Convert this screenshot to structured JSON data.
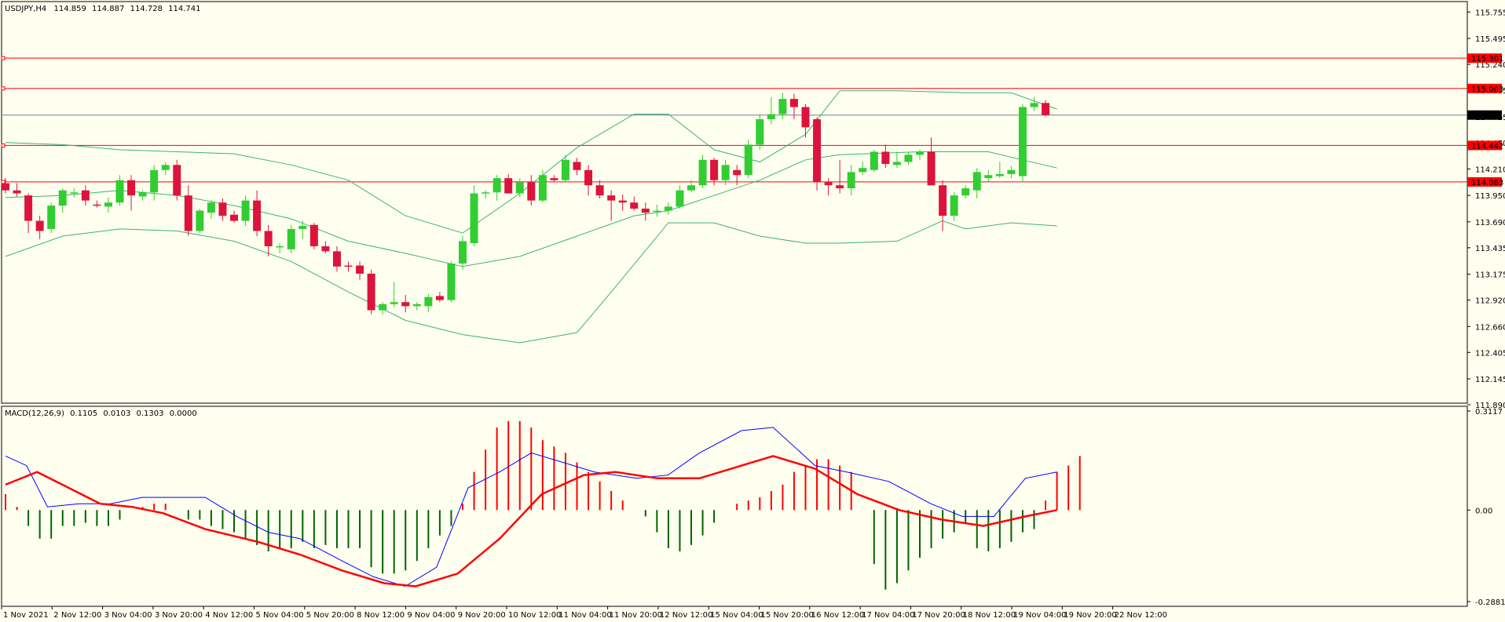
{
  "window": {
    "symbol": "USDJPY,H4",
    "ohlc": [
      "114.859",
      "114.887",
      "114.728",
      "114.741"
    ]
  },
  "colors": {
    "background": "#fffff0",
    "bull_candle": "#32cd32",
    "bear_candle": "#dc143c",
    "bands": "#3cb371",
    "level_line": "#ff0000",
    "price_line": "#708090",
    "macd_main": "#0000ff",
    "macd_signal": "#ff0000",
    "hist_up": "#ff0000",
    "hist_down": "#006400"
  },
  "chart_data": [
    {
      "type": "candlestick",
      "title": "USDJPY,H4",
      "ylim": [
        111.89,
        115.75
      ],
      "price_ticks": [
        "115.755",
        "115.495",
        "115.240",
        "114.985",
        "114.725",
        "114.470",
        "114.210",
        "113.950",
        "113.690",
        "113.435",
        "113.175",
        "112.920",
        "112.660",
        "112.405",
        "112.145",
        "111.890"
      ],
      "x_ticks": [
        "1 Nov 2021",
        "2 Nov 12:00",
        "3 Nov 04:00",
        "3 Nov 20:00",
        "4 Nov 12:00",
        "5 Nov 04:00",
        "5 Nov 20:00",
        "8 Nov 12:00",
        "9 Nov 04:00",
        "9 Nov 20:00",
        "10 Nov 12:00",
        "11 Nov 04:00",
        "11 Nov 20:00",
        "12 Nov 12:00",
        "15 Nov 04:00",
        "15 Nov 20:00",
        "16 Nov 12:00",
        "17 Nov 04:00",
        "17 Nov 20:00",
        "18 Nov 12:00",
        "19 Nov 04:00",
        "19 Nov 20:00",
        "22 Nov 12:00"
      ],
      "horizontal_levels": [
        {
          "label": "115.301",
          "value": 115.301
        },
        {
          "label": "115.003",
          "value": 115.003
        },
        {
          "label": "114.442",
          "value": 114.442
        },
        {
          "label": "114.083",
          "value": 114.083
        }
      ],
      "current_price": {
        "label": "114.741",
        "value": 114.741
      },
      "ohlc": [
        [
          114.07,
          114.12,
          113.97,
          114.0
        ],
        [
          114.0,
          114.07,
          113.94,
          113.97
        ],
        [
          113.95,
          113.97,
          113.58,
          113.7
        ],
        [
          113.7,
          113.75,
          113.52,
          113.6
        ],
        [
          113.62,
          113.88,
          113.58,
          113.85
        ],
        [
          113.85,
          114.02,
          113.78,
          114.0
        ],
        [
          113.97,
          114.02,
          113.93,
          113.98
        ],
        [
          114.0,
          114.05,
          113.85,
          113.9
        ],
        [
          113.86,
          113.9,
          113.83,
          113.85
        ],
        [
          113.84,
          113.93,
          113.78,
          113.88
        ],
        [
          113.88,
          114.15,
          113.85,
          114.1
        ],
        [
          114.1,
          114.15,
          113.8,
          113.95
        ],
        [
          113.94,
          114.0,
          113.9,
          113.98
        ],
        [
          113.98,
          114.25,
          113.9,
          114.2
        ],
        [
          114.2,
          114.28,
          114.15,
          114.25
        ],
        [
          114.25,
          114.3,
          113.9,
          113.95
        ],
        [
          113.95,
          114.05,
          113.55,
          113.6
        ],
        [
          113.6,
          113.82,
          113.58,
          113.8
        ],
        [
          113.78,
          113.9,
          113.72,
          113.88
        ],
        [
          113.88,
          113.92,
          113.7,
          113.75
        ],
        [
          113.76,
          113.8,
          113.68,
          113.7
        ],
        [
          113.7,
          113.95,
          113.65,
          113.9
        ],
        [
          113.9,
          114.0,
          113.55,
          113.6
        ],
        [
          113.6,
          113.66,
          113.35,
          113.45
        ],
        [
          113.44,
          113.48,
          113.38,
          113.45
        ],
        [
          113.42,
          113.66,
          113.38,
          113.62
        ],
        [
          113.62,
          113.7,
          113.52,
          113.65
        ],
        [
          113.66,
          113.68,
          113.42,
          113.45
        ],
        [
          113.45,
          113.5,
          113.38,
          113.4
        ],
        [
          113.4,
          113.45,
          113.2,
          113.25
        ],
        [
          113.26,
          113.3,
          113.2,
          113.25
        ],
        [
          113.26,
          113.3,
          113.12,
          113.18
        ],
        [
          113.18,
          113.22,
          112.78,
          112.82
        ],
        [
          112.82,
          112.9,
          112.78,
          112.88
        ],
        [
          112.88,
          113.1,
          112.85,
          112.9
        ],
        [
          112.9,
          112.97,
          112.8,
          112.86
        ],
        [
          112.86,
          112.9,
          112.82,
          112.88
        ],
        [
          112.86,
          112.98,
          112.8,
          112.95
        ],
        [
          112.96,
          113.0,
          112.9,
          112.92
        ],
        [
          112.92,
          113.3,
          112.9,
          113.28
        ],
        [
          113.28,
          113.55,
          113.22,
          113.5
        ],
        [
          113.48,
          114.05,
          113.45,
          113.97
        ],
        [
          113.97,
          114.0,
          113.92,
          113.98
        ],
        [
          113.98,
          114.15,
          113.9,
          114.12
        ],
        [
          114.12,
          114.16,
          113.97,
          113.97
        ],
        [
          113.97,
          114.12,
          113.93,
          114.08
        ],
        [
          114.08,
          114.15,
          113.85,
          113.9
        ],
        [
          113.9,
          114.2,
          113.88,
          114.15
        ],
        [
          114.12,
          114.15,
          114.08,
          114.1
        ],
        [
          114.1,
          114.35,
          114.08,
          114.3
        ],
        [
          114.28,
          114.32,
          114.15,
          114.2
        ],
        [
          114.2,
          114.25,
          113.95,
          114.05
        ],
        [
          114.05,
          114.1,
          113.92,
          113.95
        ],
        [
          113.95,
          114.0,
          113.7,
          113.9
        ],
        [
          113.9,
          113.96,
          113.8,
          113.88
        ],
        [
          113.88,
          113.94,
          113.8,
          113.82
        ],
        [
          113.82,
          113.88,
          113.7,
          113.78
        ],
        [
          113.8,
          113.86,
          113.74,
          113.8
        ],
        [
          113.8,
          113.88,
          113.76,
          113.84
        ],
        [
          113.84,
          114.05,
          113.82,
          114.0
        ],
        [
          114.0,
          114.1,
          113.98,
          114.05
        ],
        [
          114.05,
          114.35,
          114.02,
          114.3
        ],
        [
          114.3,
          114.32,
          114.05,
          114.1
        ],
        [
          114.1,
          114.3,
          114.05,
          114.25
        ],
        [
          114.2,
          114.25,
          114.05,
          114.15
        ],
        [
          114.15,
          114.5,
          114.12,
          114.45
        ],
        [
          114.45,
          114.75,
          114.4,
          114.7
        ],
        [
          114.7,
          114.92,
          114.65,
          114.75
        ],
        [
          114.75,
          114.96,
          114.7,
          114.9
        ],
        [
          114.9,
          114.95,
          114.7,
          114.82
        ],
        [
          114.82,
          114.85,
          114.52,
          114.62
        ],
        [
          114.7,
          114.72,
          114.0,
          114.08
        ],
        [
          114.08,
          114.12,
          113.95,
          114.05
        ],
        [
          114.05,
          114.3,
          113.97,
          114.02
        ],
        [
          114.02,
          114.25,
          113.95,
          114.18
        ],
        [
          114.18,
          114.28,
          114.15,
          114.22
        ],
        [
          114.2,
          114.4,
          114.18,
          114.38
        ],
        [
          114.38,
          114.45,
          114.22,
          114.26
        ],
        [
          114.25,
          114.38,
          114.22,
          114.28
        ],
        [
          114.28,
          114.38,
          114.25,
          114.35
        ],
        [
          114.35,
          114.4,
          114.3,
          114.38
        ],
        [
          114.38,
          114.52,
          114.05,
          114.05
        ],
        [
          114.05,
          114.1,
          113.6,
          113.75
        ],
        [
          113.75,
          113.98,
          113.7,
          113.95
        ],
        [
          113.95,
          114.05,
          113.92,
          114.02
        ],
        [
          114.0,
          114.22,
          113.92,
          114.18
        ],
        [
          114.12,
          114.2,
          114.08,
          114.15
        ],
        [
          114.14,
          114.28,
          114.12,
          114.16
        ],
        [
          114.16,
          114.24,
          114.12,
          114.2
        ],
        [
          114.14,
          114.85,
          114.08,
          114.82
        ],
        [
          114.82,
          114.92,
          114.78,
          114.86
        ],
        [
          114.86,
          114.89,
          114.73,
          114.74
        ]
      ],
      "bollinger": {
        "upper": [
          [
            0,
            114.47
          ],
          [
            5,
            114.45
          ],
          [
            10,
            114.4
          ],
          [
            15,
            114.38
          ],
          [
            20,
            114.36
          ],
          [
            25,
            114.25
          ],
          [
            30,
            114.1
          ],
          [
            35,
            113.75
          ],
          [
            40,
            113.58
          ],
          [
            45,
            113.97
          ],
          [
            50,
            114.42
          ],
          [
            55,
            114.75
          ],
          [
            58,
            114.75
          ],
          [
            62,
            114.4
          ],
          [
            66,
            114.28
          ],
          [
            70,
            114.55
          ],
          [
            73,
            114.98
          ],
          [
            78,
            114.98
          ],
          [
            84,
            114.96
          ],
          [
            88,
            114.96
          ],
          [
            92,
            114.8
          ]
        ],
        "middle": [
          [
            0,
            113.93
          ],
          [
            5,
            113.95
          ],
          [
            10,
            114.0
          ],
          [
            15,
            113.95
          ],
          [
            20,
            113.85
          ],
          [
            25,
            113.72
          ],
          [
            30,
            113.5
          ],
          [
            35,
            113.38
          ],
          [
            40,
            113.25
          ],
          [
            45,
            113.35
          ],
          [
            50,
            113.55
          ],
          [
            55,
            113.75
          ],
          [
            58,
            113.8
          ],
          [
            62,
            113.95
          ],
          [
            66,
            114.1
          ],
          [
            70,
            114.3
          ],
          [
            73,
            114.35
          ],
          [
            80,
            114.38
          ],
          [
            86,
            114.38
          ],
          [
            92,
            114.22
          ]
        ],
        "lower": [
          [
            0,
            113.35
          ],
          [
            5,
            113.55
          ],
          [
            10,
            113.62
          ],
          [
            15,
            113.6
          ],
          [
            20,
            113.5
          ],
          [
            25,
            113.3
          ],
          [
            30,
            113.0
          ],
          [
            35,
            112.72
          ],
          [
            40,
            112.58
          ],
          [
            45,
            112.5
          ],
          [
            50,
            112.6
          ],
          [
            53,
            113.0
          ],
          [
            58,
            113.68
          ],
          [
            62,
            113.68
          ],
          [
            66,
            113.55
          ],
          [
            70,
            113.48
          ],
          [
            73,
            113.48
          ],
          [
            78,
            113.5
          ],
          [
            82,
            113.7
          ],
          [
            84,
            113.62
          ],
          [
            88,
            113.68
          ],
          [
            92,
            113.65
          ]
        ]
      }
    },
    {
      "type": "macd",
      "title": "MACD(12,26,9)",
      "values": [
        "0.1105",
        "0.0103",
        "0.1303",
        "0.0000"
      ],
      "ylim": [
        -0.2881,
        0.3117
      ],
      "y_ticks": [
        "0.3117",
        "0.00",
        "-0.2881"
      ],
      "histogram": [
        0.05,
        0.01,
        -0.05,
        -0.09,
        -0.09,
        -0.05,
        -0.05,
        -0.04,
        -0.05,
        -0.05,
        -0.03,
        0.0,
        0.01,
        0.02,
        0.02,
        0.0,
        -0.03,
        -0.03,
        -0.05,
        -0.06,
        -0.07,
        -0.09,
        -0.11,
        -0.13,
        -0.12,
        -0.12,
        -0.1,
        -0.12,
        -0.11,
        -0.12,
        -0.12,
        -0.12,
        -0.18,
        -0.2,
        -0.2,
        -0.19,
        -0.16,
        -0.12,
        -0.08,
        -0.05,
        0.02,
        0.12,
        0.19,
        0.26,
        0.28,
        0.28,
        0.26,
        0.22,
        0.2,
        0.18,
        0.15,
        0.12,
        0.09,
        0.06,
        0.03,
        0.0,
        -0.02,
        -0.07,
        -0.12,
        -0.13,
        -0.11,
        -0.08,
        -0.04,
        0.0,
        0.02,
        0.03,
        0.04,
        0.06,
        0.08,
        0.12,
        0.14,
        0.16,
        0.16,
        0.14,
        0.12,
        0.0,
        -0.17,
        -0.25,
        -0.23,
        -0.19,
        -0.15,
        -0.12,
        -0.09,
        -0.07,
        -0.04,
        -0.12,
        -0.13,
        -0.12,
        -0.1,
        -0.07,
        -0.06,
        0.03,
        0.12,
        0.14,
        0.17
      ],
      "main": [
        [
          0,
          0.17
        ],
        [
          2,
          0.14
        ],
        [
          4,
          0.01
        ],
        [
          7,
          0.02
        ],
        [
          10,
          0.02
        ],
        [
          13,
          0.04
        ],
        [
          16,
          0.04
        ],
        [
          19,
          0.04
        ],
        [
          22,
          -0.02
        ],
        [
          25,
          -0.07
        ],
        [
          28,
          -0.09
        ],
        [
          32,
          -0.16
        ],
        [
          35,
          -0.21
        ],
        [
          38,
          -0.24
        ],
        [
          41,
          -0.18
        ],
        [
          44,
          0.07
        ],
        [
          47,
          0.12
        ],
        [
          50,
          0.18
        ],
        [
          53,
          0.15
        ],
        [
          56,
          0.12
        ],
        [
          60,
          0.1
        ],
        [
          63,
          0.11
        ],
        [
          66,
          0.18
        ],
        [
          70,
          0.25
        ],
        [
          73,
          0.26
        ],
        [
          77,
          0.14
        ],
        [
          80,
          0.12
        ],
        [
          84,
          0.09
        ],
        [
          88,
          0.02
        ],
        [
          91,
          -0.02
        ],
        [
          94,
          -0.02
        ],
        [
          97,
          0.1
        ],
        [
          100,
          0.12
        ]
      ],
      "signal": [
        [
          0,
          0.08
        ],
        [
          3,
          0.12
        ],
        [
          6,
          0.07
        ],
        [
          9,
          0.02
        ],
        [
          12,
          0.01
        ],
        [
          15,
          -0.01
        ],
        [
          19,
          -0.06
        ],
        [
          24,
          -0.1
        ],
        [
          28,
          -0.14
        ],
        [
          32,
          -0.19
        ],
        [
          36,
          -0.23
        ],
        [
          39,
          -0.24
        ],
        [
          43,
          -0.2
        ],
        [
          47,
          -0.09
        ],
        [
          51,
          0.05
        ],
        [
          55,
          0.11
        ],
        [
          58,
          0.12
        ],
        [
          62,
          0.1
        ],
        [
          66,
          0.1
        ],
        [
          70,
          0.14
        ],
        [
          73,
          0.17
        ],
        [
          77,
          0.13
        ],
        [
          81,
          0.05
        ],
        [
          85,
          0.0
        ],
        [
          89,
          -0.03
        ],
        [
          93,
          -0.05
        ],
        [
          97,
          -0.02
        ],
        [
          100,
          0.0
        ]
      ]
    }
  ]
}
